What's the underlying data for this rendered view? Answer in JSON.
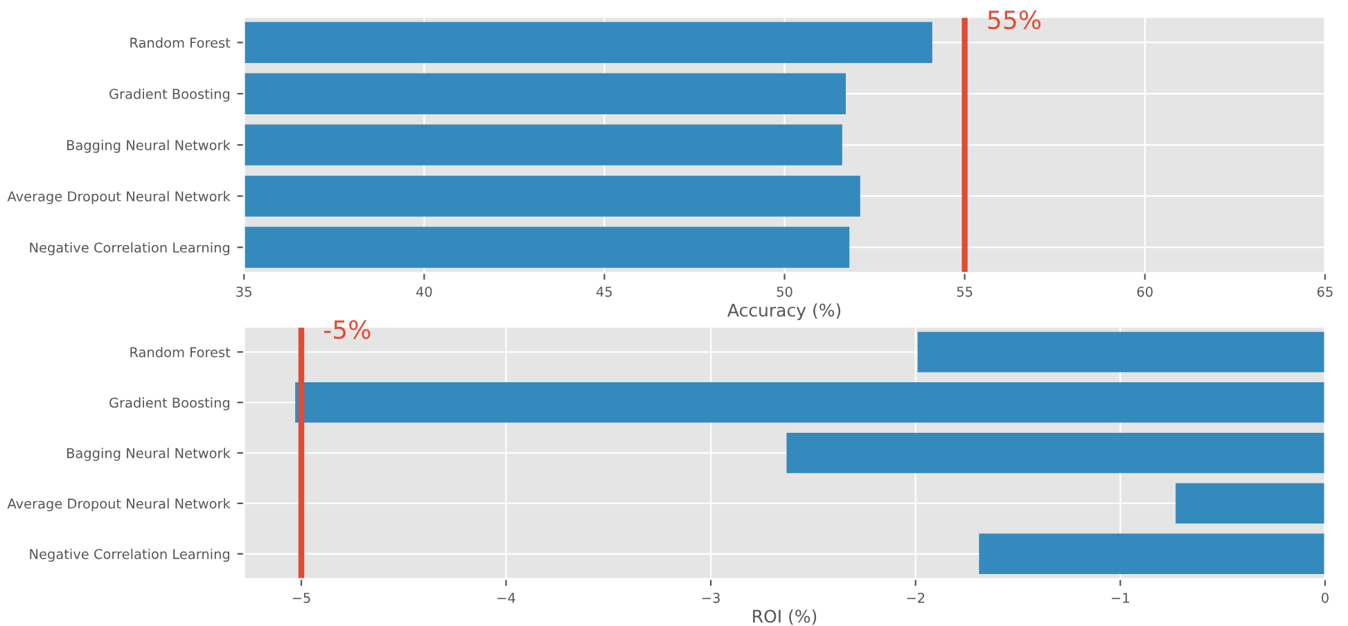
{
  "chart_data": [
    {
      "type": "bar",
      "orientation": "horizontal",
      "xlabel": "Accuracy (%)",
      "categories": [
        "Random Forest",
        "Gradient Boosting",
        "Bagging Neural Network",
        "Average Dropout Neural Network",
        "Negative Correlation Learning"
      ],
      "values": [
        54.1,
        51.7,
        51.6,
        52.1,
        51.8
      ],
      "color": "#348abd",
      "xlim": [
        35,
        65
      ],
      "xticks": [
        35,
        40,
        45,
        50,
        55,
        60,
        65
      ],
      "grid": true,
      "ref_lines": [
        {
          "axis": "x",
          "value": 55,
          "label": "55%",
          "color": "#e24a33"
        }
      ]
    },
    {
      "type": "bar",
      "orientation": "horizontal",
      "xlabel": "ROI (%)",
      "categories": [
        "Random Forest",
        "Gradient Boosting",
        "Bagging Neural Network",
        "Average Dropout Neural Network",
        "Negative Correlation Learning"
      ],
      "values": [
        -1.99,
        -5.03,
        -2.63,
        -0.73,
        -1.69
      ],
      "color": "#348abd",
      "xlim": [
        -5.28,
        0
      ],
      "xticks": [
        {
          "value": -5,
          "label": "−5"
        },
        {
          "value": -4,
          "label": "−4"
        },
        {
          "value": -3,
          "label": "−3"
        },
        {
          "value": -2,
          "label": "−2"
        },
        {
          "value": -1,
          "label": "−1"
        },
        0
      ],
      "grid": true,
      "ref_lines": [
        {
          "axis": "x",
          "value": -5,
          "label": "-5%",
          "color": "#e24a33"
        }
      ]
    }
  ]
}
